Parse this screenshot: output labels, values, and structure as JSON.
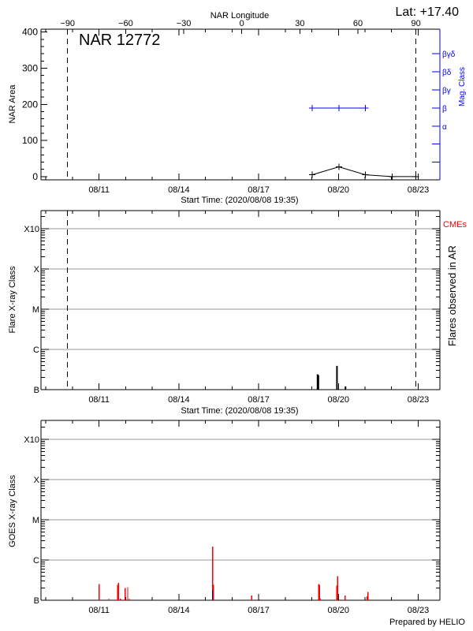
{
  "colors": {
    "axis": "#000000",
    "mag_class": "#0000ff",
    "goes": "#ff0000",
    "goes_alt": "#0000ff",
    "grid": "#999999",
    "cme": "#ff0000"
  },
  "chart_data": [
    {
      "type": "line",
      "title": "NAR 12772",
      "annotation": "Lat: +17.40",
      "xlabel": "Start Time: (2020/08/08 19:35)",
      "top_xlabel": "NAR Longitude",
      "ylabel": "NAR Area",
      "right_ylabel": "Mag. Class",
      "x_unit": "days since start",
      "xlim": [
        0,
        15
      ],
      "ylim": [
        -9,
        408
      ],
      "x_tick_labels": [
        {
          "day": 2.184,
          "label": "08/11"
        },
        {
          "day": 5.184,
          "label": "08/14"
        },
        {
          "day": 8.184,
          "label": "08/17"
        },
        {
          "day": 11.184,
          "label": "08/20"
        },
        {
          "day": 14.184,
          "label": "08/23"
        }
      ],
      "y_ticks": [
        0,
        100,
        200,
        300,
        400
      ],
      "longitude_ticks": [
        -90,
        -60,
        -30,
        0,
        30,
        60,
        90
      ],
      "longitude_to_day": {
        "lon_minus90_day": 1.0,
        "lon_plus90_day": 14.1
      },
      "mag_class_ticks": [
        {
          "value": 340,
          "label": "βγδ"
        },
        {
          "value": 290,
          "label": "βδ"
        },
        {
          "value": 240,
          "label": "βγ"
        },
        {
          "value": 190,
          "label": "β"
        },
        {
          "value": 140,
          "label": "α"
        },
        {
          "value": 90,
          "label": ""
        },
        {
          "value": 40,
          "label": ""
        }
      ],
      "area_series": {
        "x": [
          10.2,
          11.2,
          12.2,
          13.2,
          14.1
        ],
        "y": [
          5,
          27,
          5,
          0,
          0
        ]
      },
      "mag_series": {
        "x": [
          10.2,
          11.2,
          12.2
        ],
        "class": [
          "β",
          "β",
          "β"
        ],
        "y": [
          190,
          190,
          190
        ]
      },
      "limb_lines_longitude": [
        -90,
        90
      ]
    },
    {
      "type": "bar",
      "xlabel": "Start Time: (2020/08/08 19:35)",
      "ylabel": "Flare X-ray Class",
      "right_ylabel": "Flares observed in AR",
      "right_label": "CMEs",
      "yscale": "log",
      "y_class_ticks": [
        {
          "flux": 1e-07,
          "label": "B"
        },
        {
          "flux": 1e-06,
          "label": "C"
        },
        {
          "flux": 1e-05,
          "label": "M"
        },
        {
          "flux": 0.0001,
          "label": "X"
        },
        {
          "flux": 0.001,
          "label": "X10"
        }
      ],
      "grid": true,
      "flares": [
        {
          "day": 10.4,
          "flux": 2.4e-07
        },
        {
          "day": 10.43,
          "flux": 2.3e-07
        },
        {
          "day": 11.13,
          "flux": 3.9e-07
        },
        {
          "day": 11.45,
          "flux": 1.2e-07
        }
      ]
    },
    {
      "type": "bar",
      "ylabel": "GOES X-ray Class",
      "yscale": "log",
      "y_class_ticks": [
        {
          "flux": 1e-07,
          "label": "B"
        },
        {
          "flux": 1e-06,
          "label": "C"
        },
        {
          "flux": 1e-05,
          "label": "M"
        },
        {
          "flux": 0.0001,
          "label": "X"
        },
        {
          "flux": 0.001,
          "label": "X10"
        }
      ],
      "grid": true,
      "events": [
        {
          "day": 2.19,
          "flux": 2.5e-07
        },
        {
          "day": 2.55,
          "flux": 1.1e-07
        },
        {
          "day": 2.88,
          "flux": 2.4e-07
        },
        {
          "day": 2.91,
          "flux": 2.7e-07
        },
        {
          "day": 2.99,
          "flux": 1.1e-07
        },
        {
          "day": 3.17,
          "flux": 2e-07
        },
        {
          "day": 3.26,
          "flux": 2.1e-07
        },
        {
          "day": 3.32,
          "flux": 1.1e-07
        },
        {
          "day": 6.46,
          "flux": 2.15e-06
        },
        {
          "day": 6.49,
          "flux": 2.4e-07
        },
        {
          "day": 7.92,
          "flux": 1.3e-07
        },
        {
          "day": 8.21,
          "flux": 1.05e-07
        },
        {
          "day": 10.44,
          "flux": 2.5e-07
        },
        {
          "day": 10.47,
          "flux": 2.4e-07
        },
        {
          "day": 10.5,
          "flux": 1.1e-07
        },
        {
          "day": 11.12,
          "flux": 2.3e-07
        },
        {
          "day": 11.15,
          "flux": 4e-07
        },
        {
          "day": 11.44,
          "flux": 1.3e-07
        },
        {
          "day": 12.27,
          "flux": 1.25e-07
        },
        {
          "day": 12.3,
          "flux": 1.6e-07
        }
      ],
      "alt_events": [
        {
          "day": 6.46,
          "flux": 1.8e-07
        }
      ]
    }
  ],
  "footer": "Prepared by HELIO"
}
